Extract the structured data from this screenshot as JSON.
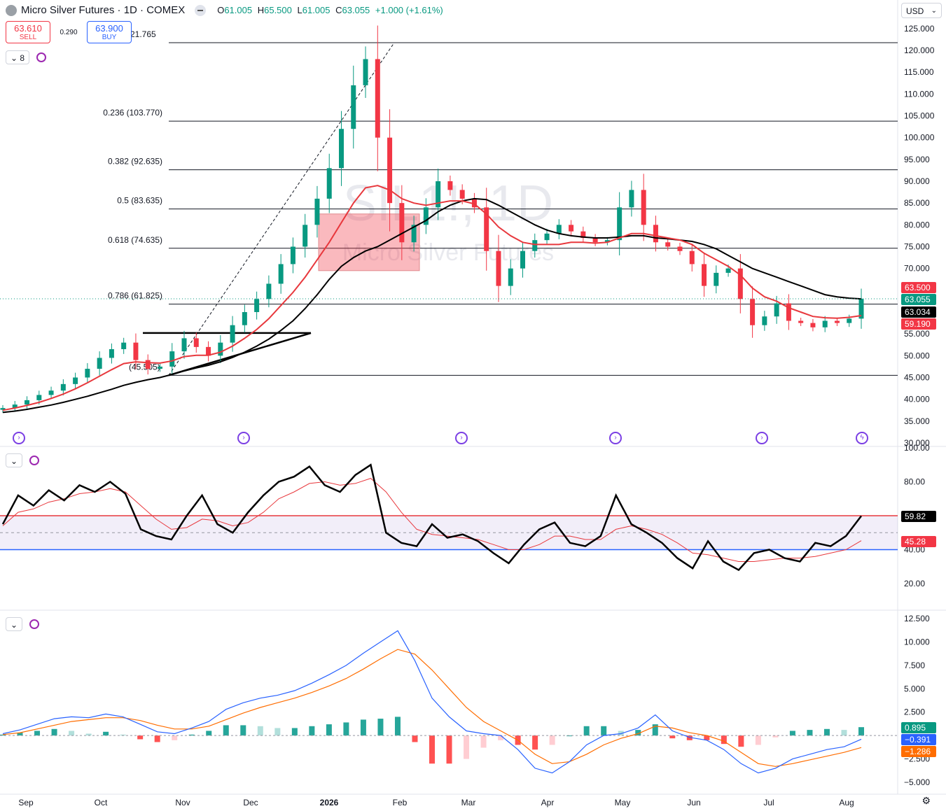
{
  "header": {
    "title": "Micro Silver Futures · 1D · COMEX",
    "open_label": "O",
    "open": "61.005",
    "high_label": "H",
    "high": "65.500",
    "low_label": "L",
    "low": "61.005",
    "close_label": "C",
    "close": "63.055",
    "change": "+1.000 (+1.61%)"
  },
  "trade": {
    "sell_price": "63.610",
    "sell_label": "SELL",
    "spread": "0.290",
    "buy_price": "63.900",
    "buy_label": "BUY"
  },
  "currency": "USD",
  "indicator_count": "8",
  "watermark": {
    "symbol": "SIL1!, 1D",
    "name": "Micro Silver Futures"
  },
  "colors": {
    "up": "#089981",
    "down": "#f23645",
    "ma_fast": "#e8383d",
    "ma_slow": "#000000",
    "macd": "#2962ff",
    "signal": "#ff6d00",
    "rsi": "#000000",
    "rsi_ma": "#e8383d"
  },
  "chart_data": [
    {
      "type": "candlestick",
      "name": "price",
      "x_labels": [
        "Sep",
        "Oct",
        "Nov",
        "Dec",
        "2026",
        "Feb",
        "Mar",
        "Apr",
        "May",
        "Jun",
        "Jul",
        "Aug"
      ],
      "y_ticks": [
        "125.000",
        "120.000",
        "115.000",
        "110.000",
        "105.000",
        "100.000",
        "95.000",
        "90.000",
        "85.000",
        "80.000",
        "75.000",
        "70.000",
        "55.000",
        "50.000",
        "45.000",
        "40.000",
        "35.000",
        "30.000"
      ],
      "ylim": [
        30,
        125
      ],
      "closes": [
        38.0,
        38.8,
        39.8,
        41.0,
        42.0,
        43.5,
        45.0,
        47.0,
        49.5,
        51.5,
        53.0,
        49.0,
        47.0,
        47.5,
        51.0,
        54.0,
        52.0,
        50.0,
        53.0,
        57.0,
        60.0,
        63.0,
        66.5,
        71.0,
        75.0,
        80.0,
        86.0,
        93.0,
        102.0,
        112.0,
        118.0,
        100.0,
        85.0,
        76.0,
        80.0,
        84.0,
        90.0,
        88.0,
        86.0,
        84.0,
        74.0,
        66.0,
        70.0,
        74.0,
        76.5,
        78.0,
        80.0,
        78.5,
        77.0,
        76.0,
        76.5,
        84.0,
        88.0,
        80.0,
        76.0,
        75.0,
        74.0,
        71.0,
        66.0,
        69.0,
        70.0,
        63.0,
        57.0,
        59.0,
        62.0,
        58.0,
        57.5,
        56.5,
        58.0,
        57.5,
        58.5,
        63.055
      ],
      "ma_fast": [
        37.5,
        38.0,
        38.6,
        39.3,
        40.2,
        41.2,
        42.4,
        43.8,
        45.3,
        46.8,
        48.2,
        48.6,
        48.4,
        48.3,
        48.8,
        49.8,
        50.1,
        50.1,
        50.8,
        52.2,
        54.0,
        56.0,
        58.5,
        61.5,
        64.5,
        68.0,
        72.0,
        76.0,
        80.5,
        85.0,
        88.5,
        89.0,
        88.0,
        86.0,
        85.0,
        84.5,
        85.0,
        85.5,
        85.5,
        84.8,
        82.5,
        79.5,
        77.5,
        76.0,
        75.5,
        75.5,
        75.5,
        76.0,
        76.0,
        75.8,
        76.0,
        77.0,
        78.0,
        78.0,
        77.5,
        77.0,
        76.5,
        75.5,
        73.5,
        72.0,
        70.5,
        68.5,
        65.5,
        63.5,
        62.5,
        61.0,
        60.0,
        59.0,
        58.7,
        58.6,
        58.8,
        59.19
      ],
      "ma_slow": [
        37.0,
        37.3,
        37.7,
        38.2,
        38.7,
        39.3,
        40.0,
        40.7,
        41.5,
        42.3,
        43.2,
        43.9,
        44.5,
        45.0,
        45.7,
        46.5,
        47.2,
        47.8,
        48.6,
        49.6,
        50.8,
        52.2,
        53.8,
        55.8,
        58.0,
        60.8,
        64.0,
        67.5,
        70.5,
        72.5,
        74.0,
        75.0,
        76.5,
        78.0,
        79.5,
        81.0,
        83.0,
        84.5,
        85.5,
        86.0,
        85.8,
        84.5,
        83.0,
        81.5,
        80.0,
        78.8,
        78.0,
        77.5,
        77.2,
        77.0,
        77.0,
        77.2,
        77.5,
        77.5,
        77.0,
        76.8,
        76.5,
        76.2,
        75.5,
        74.5,
        73.0,
        71.5,
        70.0,
        69.0,
        68.0,
        67.0,
        66.0,
        65.0,
        64.0,
        63.5,
        63.2,
        63.034
      ],
      "fib_levels": [
        {
          "label": "21.765",
          "value": 121.765
        },
        {
          "label": "0.236 (103.770)",
          "value": 103.77
        },
        {
          "label": "0.382 (92.635)",
          "value": 92.635
        },
        {
          "label": "0.5 (83.635)",
          "value": 83.635
        },
        {
          "label": "0.618 (74.635)",
          "value": 74.635
        },
        {
          "label": "0.786 (61.825)",
          "value": 61.825
        },
        {
          "label": "(45.505)",
          "value": 45.505
        }
      ],
      "highlight_box": {
        "x_from": "2026",
        "y_from": 69.5,
        "y_to": 82.5
      },
      "price_tags": [
        {
          "text": "63.500",
          "color": "#f23645",
          "value": 63.5
        },
        {
          "text": "63.055",
          "color": "#089981",
          "value": 63.055
        },
        {
          "text": "63.034",
          "color": "#000000",
          "value": 63.034
        },
        {
          "text": "59.190",
          "color": "#f23645",
          "value": 59.19
        }
      ]
    },
    {
      "type": "line",
      "name": "rsi",
      "y_ticks": [
        "100.00",
        "80.00",
        "40.00",
        "20.00"
      ],
      "ylim": [
        10,
        100
      ],
      "band": [
        40,
        60
      ],
      "rsi": [
        55,
        72,
        66,
        75,
        69,
        78,
        74,
        80,
        73,
        52,
        48,
        46,
        60,
        72,
        55,
        50,
        62,
        72,
        80,
        83,
        89,
        78,
        74,
        84,
        90,
        50,
        44,
        42,
        55,
        47,
        49,
        45,
        38,
        32,
        43,
        52,
        56,
        44,
        42,
        48,
        72,
        55,
        50,
        44,
        35,
        29,
        45,
        33,
        28,
        38,
        40,
        35,
        33,
        44,
        42,
        48,
        59.82
      ],
      "rsi_ma": [
        54,
        62,
        64,
        68,
        70,
        73,
        74,
        76,
        74,
        66,
        58,
        52,
        53,
        58,
        57,
        54,
        56,
        62,
        70,
        74,
        79,
        80,
        78,
        79,
        82,
        74,
        62,
        52,
        49,
        48,
        47,
        46,
        43,
        40,
        40,
        43,
        48,
        48,
        46,
        46,
        52,
        54,
        52,
        49,
        44,
        38,
        37,
        35,
        33,
        33,
        34,
        35,
        35,
        36,
        38,
        40,
        45.28
      ],
      "tags": [
        {
          "text": "59.82",
          "color": "#000000",
          "value": 59.82
        },
        {
          "text": "45.28",
          "color": "#f23645",
          "value": 45.28
        }
      ]
    },
    {
      "type": "line",
      "name": "macd",
      "y_ticks": [
        "12.500",
        "10.000",
        "7.500",
        "5.000",
        "2.500",
        "−2.500",
        "−5.000"
      ],
      "ylim": [
        -6,
        13
      ],
      "macd": [
        0.2,
        0.6,
        1.2,
        1.8,
        2.0,
        1.9,
        2.3,
        2.0,
        1.2,
        0.4,
        0.2,
        0.8,
        1.5,
        2.8,
        3.5,
        4.0,
        4.3,
        4.8,
        5.6,
        6.5,
        7.5,
        8.8,
        10.0,
        11.2,
        8.0,
        4.0,
        2.0,
        0.5,
        0.2,
        0.0,
        -1.5,
        -3.5,
        -4.0,
        -2.8,
        -1.0,
        0.0,
        0.2,
        0.8,
        2.2,
        0.5,
        -0.2,
        -0.5,
        -1.5,
        -3.0,
        -4.0,
        -3.5,
        -2.5,
        -2.0,
        -1.5,
        -1.2,
        -0.391
      ],
      "signal": [
        0.1,
        0.3,
        0.7,
        1.1,
        1.5,
        1.7,
        1.9,
        1.9,
        1.6,
        1.1,
        0.7,
        0.7,
        1.0,
        1.7,
        2.4,
        3.0,
        3.5,
        4.0,
        4.6,
        5.3,
        6.1,
        7.1,
        8.2,
        9.2,
        8.7,
        7.0,
        5.0,
        3.0,
        1.5,
        0.5,
        -0.5,
        -2.0,
        -3.0,
        -2.8,
        -2.0,
        -1.0,
        -0.3,
        0.2,
        1.0,
        0.8,
        0.3,
        0.0,
        -0.6,
        -1.8,
        -3.0,
        -3.3,
        -3.0,
        -2.6,
        -2.2,
        -1.8,
        -1.286
      ],
      "tags": [
        {
          "text": "0.895",
          "color": "#089981",
          "value": 0.895
        },
        {
          "text": "−0.391",
          "color": "#2962ff",
          "value": -0.391
        },
        {
          "text": "−1.286",
          "color": "#ff6d00",
          "value": -1.286
        }
      ]
    }
  ]
}
